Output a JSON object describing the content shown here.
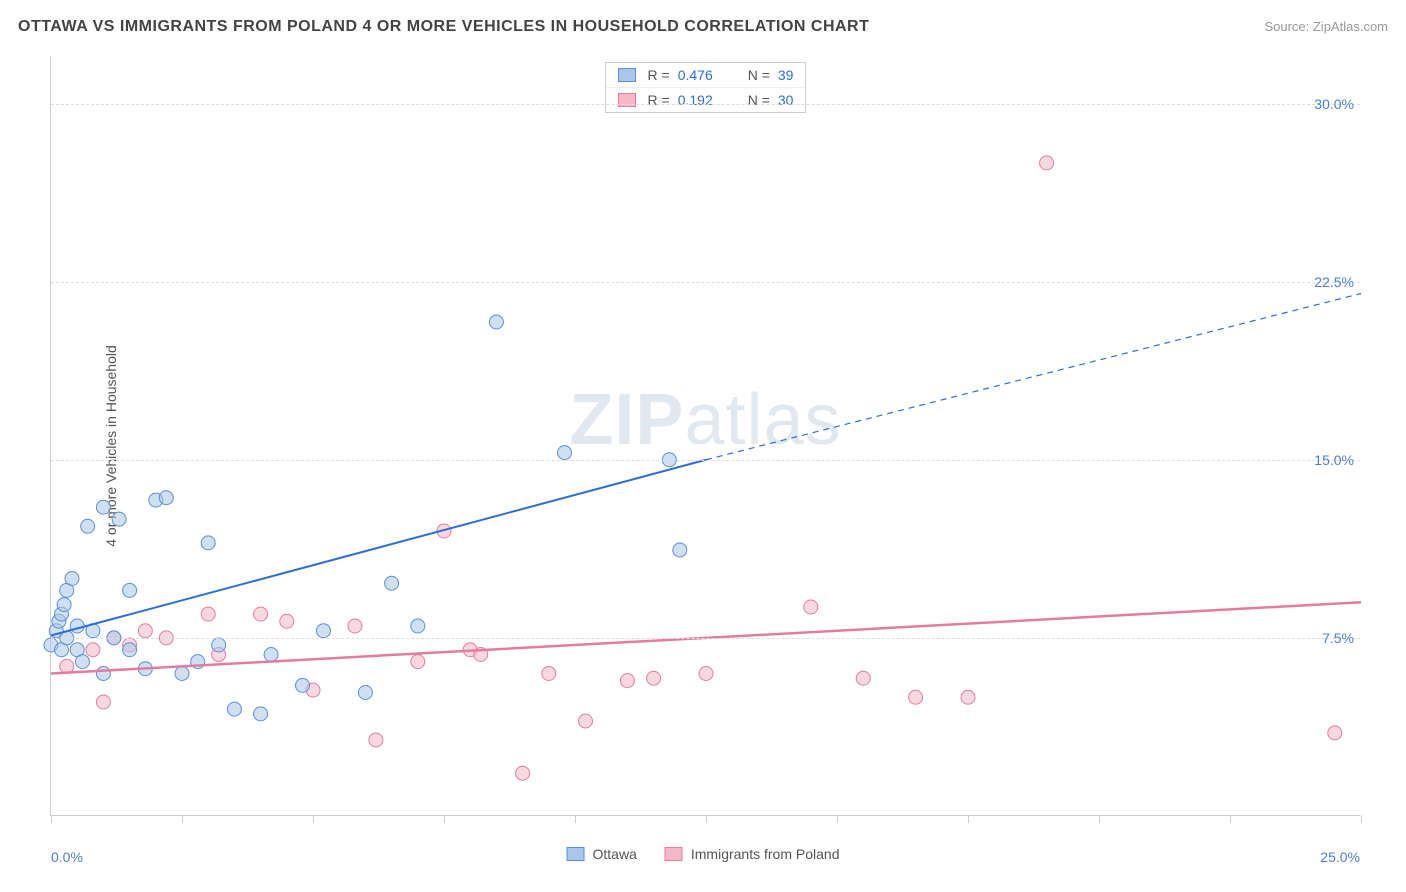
{
  "header": {
    "title": "OTTAWA VS IMMIGRANTS FROM POLAND 4 OR MORE VEHICLES IN HOUSEHOLD CORRELATION CHART",
    "source": "Source: ZipAtlas.com"
  },
  "watermark": {
    "part1": "ZIP",
    "part2": "atlas"
  },
  "y_axis": {
    "label": "4 or more Vehicles in Household"
  },
  "chart": {
    "type": "scatter",
    "xlim": [
      0,
      25
    ],
    "ylim": [
      0,
      32
    ],
    "y_ticks": [
      7.5,
      15.0,
      22.5,
      30.0
    ],
    "y_tick_labels": [
      "7.5%",
      "15.0%",
      "22.5%",
      "30.0%"
    ],
    "x_ticks": [
      0,
      2.5,
      5,
      7.5,
      10,
      12.5,
      15,
      17.5,
      20,
      22.5,
      25
    ],
    "x_tick_labels": {
      "min": "0.0%",
      "max": "25.0%"
    },
    "background_color": "#ffffff",
    "grid_color": "#dddddd",
    "axis_color": "#cccccc",
    "tick_label_color": "#4a7fd8",
    "marker_radius": 7,
    "marker_opacity": 0.55,
    "series": [
      {
        "name": "Ottawa",
        "color_fill": "#a9c7ea",
        "color_stroke": "#5a8fd8",
        "R": "0.476",
        "N": "39",
        "trend": {
          "x1": 0,
          "y1": 7.6,
          "x2": 12.5,
          "y2": 15.0,
          "x2_ext": 25,
          "y2_ext": 22.0,
          "stroke": "#2d6fd6",
          "width": 2
        },
        "points": [
          [
            0.0,
            7.2
          ],
          [
            0.1,
            7.8
          ],
          [
            0.15,
            8.2
          ],
          [
            0.2,
            7.0
          ],
          [
            0.2,
            8.5
          ],
          [
            0.25,
            8.9
          ],
          [
            0.3,
            7.5
          ],
          [
            0.3,
            9.5
          ],
          [
            0.4,
            10.0
          ],
          [
            0.5,
            8.0
          ],
          [
            0.5,
            7.0
          ],
          [
            0.6,
            6.5
          ],
          [
            0.7,
            12.2
          ],
          [
            0.8,
            7.8
          ],
          [
            1.0,
            13.0
          ],
          [
            1.0,
            6.0
          ],
          [
            1.2,
            7.5
          ],
          [
            1.3,
            12.5
          ],
          [
            1.5,
            7.0
          ],
          [
            1.5,
            9.5
          ],
          [
            1.8,
            6.2
          ],
          [
            2.0,
            13.3
          ],
          [
            2.2,
            13.4
          ],
          [
            2.5,
            6.0
          ],
          [
            2.8,
            6.5
          ],
          [
            3.0,
            11.5
          ],
          [
            3.2,
            7.2
          ],
          [
            3.5,
            4.5
          ],
          [
            4.0,
            4.3
          ],
          [
            4.2,
            6.8
          ],
          [
            4.8,
            5.5
          ],
          [
            5.2,
            7.8
          ],
          [
            6.0,
            5.2
          ],
          [
            6.5,
            9.8
          ],
          [
            7.0,
            8.0
          ],
          [
            8.5,
            20.8
          ],
          [
            9.8,
            15.3
          ],
          [
            11.8,
            15.0
          ],
          [
            12.0,
            11.2
          ]
        ]
      },
      {
        "name": "Immigrants from Poland",
        "color_fill": "#f4b8c9",
        "color_stroke": "#e67ba0",
        "R": "0.192",
        "N": "30",
        "trend": {
          "x1": 0,
          "y1": 6.0,
          "x2": 25,
          "y2": 9.0,
          "stroke": "#e67ba0",
          "width": 2.5
        },
        "points": [
          [
            0.3,
            6.3
          ],
          [
            0.8,
            7.0
          ],
          [
            1.0,
            4.8
          ],
          [
            1.2,
            7.5
          ],
          [
            1.5,
            7.2
          ],
          [
            1.8,
            7.8
          ],
          [
            2.2,
            7.5
          ],
          [
            3.0,
            8.5
          ],
          [
            3.2,
            6.8
          ],
          [
            4.0,
            8.5
          ],
          [
            4.5,
            8.2
          ],
          [
            5.0,
            5.3
          ],
          [
            5.8,
            8.0
          ],
          [
            6.2,
            3.2
          ],
          [
            7.0,
            6.5
          ],
          [
            7.5,
            12.0
          ],
          [
            8.0,
            7.0
          ],
          [
            8.2,
            6.8
          ],
          [
            9.0,
            1.8
          ],
          [
            9.5,
            6.0
          ],
          [
            10.2,
            4.0
          ],
          [
            11.0,
            5.7
          ],
          [
            11.5,
            5.8
          ],
          [
            12.5,
            6.0
          ],
          [
            14.5,
            8.8
          ],
          [
            15.5,
            5.8
          ],
          [
            16.5,
            5.0
          ],
          [
            17.5,
            5.0
          ],
          [
            19.0,
            27.5
          ],
          [
            24.5,
            3.5
          ]
        ]
      }
    ]
  },
  "legend_bottom": {
    "items": [
      {
        "label": "Ottawa",
        "fill": "#a9c7ea",
        "stroke": "#5a8fd8"
      },
      {
        "label": "Immigrants from Poland",
        "fill": "#f4b8c9",
        "stroke": "#e67ba0"
      }
    ]
  }
}
